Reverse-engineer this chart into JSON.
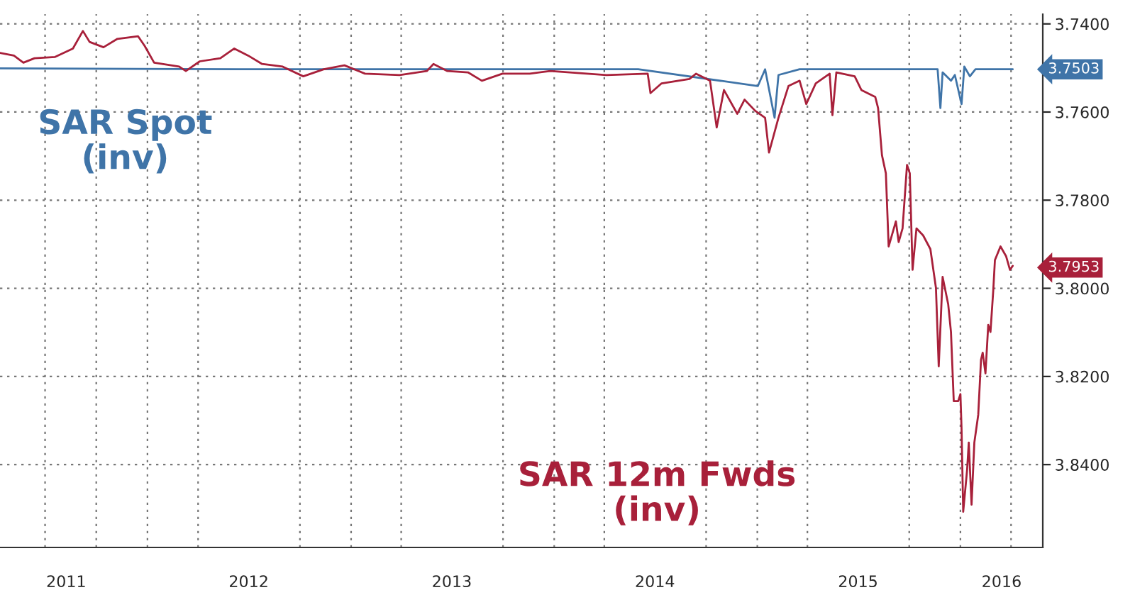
{
  "chart_data": {
    "type": "line",
    "series": [
      {
        "name": "SAR Spot\n(inv)",
        "color": "#3f74a8",
        "x": [
          "2011-04-11",
          "2012-06-12",
          "2014-06-01",
          "2015-01-02",
          "2015-01-15",
          "2015-02-01",
          "2015-02-08",
          "2015-03-18",
          "2015-11-21",
          "2015-11-26",
          "2015-11-30",
          "2015-12-15",
          "2015-12-22",
          "2016-01-03",
          "2016-01-08",
          "2016-01-18",
          "2016-01-28",
          "2016-04-04"
        ],
        "values": [
          3.7501,
          3.7503,
          3.7503,
          3.7541,
          3.7503,
          3.7613,
          3.7516,
          3.7503,
          3.7503,
          3.7591,
          3.751,
          3.7529,
          3.7516,
          3.7582,
          3.7497,
          3.7519,
          3.7503,
          3.7503
        ]
      },
      {
        "name": "SAR 12m Fwds\n(inv)",
        "color": "#a8203a",
        "x": [
          "2011-04-11",
          "2011-05-06",
          "2011-05-23",
          "2011-06-12",
          "2011-07-19",
          "2011-08-20",
          "2011-09-07",
          "2011-09-19",
          "2011-10-14",
          "2011-11-08",
          "2011-12-15",
          "2011-12-27",
          "2012-01-13",
          "2012-02-27",
          "2012-03-10",
          "2012-04-04",
          "2012-05-11",
          "2012-06-05",
          "2012-06-30",
          "2012-07-25",
          "2012-08-31",
          "2012-10-07",
          "2012-11-13",
          "2012-12-20",
          "2013-01-26",
          "2013-03-29",
          "2013-05-17",
          "2013-05-29",
          "2013-06-23",
          "2013-07-30",
          "2013-08-24",
          "2013-09-30",
          "2013-11-18",
          "2013-12-25",
          "2014-04-05",
          "2014-06-18",
          "2014-06-23",
          "2014-07-13",
          "2014-09-01",
          "2014-09-13",
          "2014-10-08",
          "2014-10-20",
          "2014-11-02",
          "2014-11-26",
          "2014-12-09",
          "2014-12-28",
          "2015-01-15",
          "2015-01-22",
          "2015-02-08",
          "2015-02-26",
          "2015-03-18",
          "2015-03-30",
          "2015-04-16",
          "2015-05-11",
          "2015-05-16",
          "2015-05-23",
          "2015-06-25",
          "2015-07-07",
          "2015-08-01",
          "2015-08-06",
          "2015-08-13",
          "2015-08-20",
          "2015-08-25",
          "2015-09-07",
          "2015-09-12",
          "2015-09-19",
          "2015-09-27",
          "2015-10-02",
          "2015-10-07",
          "2015-10-14",
          "2015-10-26",
          "2015-11-08",
          "2015-11-18",
          "2015-11-23",
          "2015-11-30",
          "2015-12-10",
          "2015-12-15",
          "2015-12-20",
          "2015-12-28",
          "2016-01-01",
          "2016-01-03",
          "2016-01-06",
          "2016-01-13",
          "2016-01-16",
          "2016-01-21",
          "2016-01-26",
          "2016-02-02",
          "2016-02-07",
          "2016-02-10",
          "2016-02-15",
          "2016-02-20",
          "2016-02-24",
          "2016-02-29",
          "2016-03-03",
          "2016-03-13",
          "2016-03-23",
          "2016-03-30",
          "2016-04-04"
        ],
        "values": [
          3.7466,
          3.7472,
          3.7488,
          3.7478,
          3.7475,
          3.7456,
          3.7416,
          3.7441,
          3.7453,
          3.7434,
          3.7428,
          3.745,
          3.7488,
          3.7497,
          3.7507,
          3.7485,
          3.7478,
          3.7456,
          3.7472,
          3.7491,
          3.7497,
          3.7519,
          3.7503,
          3.7494,
          3.7513,
          3.7516,
          3.7507,
          3.7491,
          3.7507,
          3.751,
          3.7529,
          3.7513,
          3.7513,
          3.7507,
          3.7516,
          3.7513,
          3.7557,
          3.7535,
          3.7525,
          3.7513,
          3.7529,
          3.7635,
          3.755,
          3.7604,
          3.7572,
          3.7597,
          3.7613,
          3.7692,
          3.7613,
          3.7541,
          3.7529,
          3.7582,
          3.7535,
          3.7513,
          3.7607,
          3.751,
          3.7519,
          3.755,
          3.7566,
          3.7591,
          3.7698,
          3.7739,
          3.7905,
          3.7848,
          3.7895,
          3.7864,
          3.772,
          3.7739,
          3.7958,
          3.7864,
          3.788,
          3.7911,
          3.7999,
          3.8177,
          3.7974,
          3.8036,
          3.8099,
          3.8256,
          3.8256,
          3.824,
          3.8318,
          3.8507,
          3.8412,
          3.835,
          3.8491,
          3.835,
          3.8287,
          3.8162,
          3.8146,
          3.8193,
          3.8083,
          3.8099,
          3.8005,
          3.7936,
          3.7905,
          3.7927,
          3.7958,
          3.7949
        ]
      }
    ],
    "xlim": [
      "2011-04-11",
      "2016-05-28"
    ],
    "xticks": [
      {
        "value": "2011-07-01",
        "label": null
      },
      {
        "value": "2011-08-08",
        "label": "2011"
      },
      {
        "value": "2011-10-01",
        "label": null
      },
      {
        "value": "2012-01-01",
        "label": null
      },
      {
        "value": "2012-04-01",
        "label": null
      },
      {
        "value": "2012-07-01",
        "label": "2012"
      },
      {
        "value": "2012-10-01",
        "label": null
      },
      {
        "value": "2013-01-01",
        "label": null
      },
      {
        "value": "2013-04-01",
        "label": null
      },
      {
        "value": "2013-07-01",
        "label": "2013"
      },
      {
        "value": "2013-10-01",
        "label": null
      },
      {
        "value": "2014-01-01",
        "label": null
      },
      {
        "value": "2014-04-01",
        "label": null
      },
      {
        "value": "2014-07-01",
        "label": "2014"
      },
      {
        "value": "2014-10-01",
        "label": null
      },
      {
        "value": "2015-01-01",
        "label": null
      },
      {
        "value": "2015-04-01",
        "label": null
      },
      {
        "value": "2015-07-01",
        "label": "2015"
      },
      {
        "value": "2015-10-01",
        "label": null
      },
      {
        "value": "2016-01-01",
        "label": null
      },
      {
        "value": "2016-03-15",
        "label": "2016"
      },
      {
        "value": "2016-04-01",
        "label": null
      }
    ],
    "ylim": [
      3.8588,
      3.7378
    ],
    "yticks": [
      {
        "value": 3.74,
        "label": "3.7400"
      },
      {
        "value": 3.76,
        "label": "3.7600"
      },
      {
        "value": 3.78,
        "label": "3.7800"
      },
      {
        "value": 3.8,
        "label": "3.8000"
      },
      {
        "value": 3.82,
        "label": "3.8200"
      },
      {
        "value": 3.84,
        "label": "3.8400"
      }
    ],
    "grid": true,
    "line_style": "solid",
    "marker": "none",
    "annotations": [
      {
        "text": "3.7503",
        "x": "2016-04-04",
        "y": 3.7503
      },
      {
        "text": "3.7953",
        "x": "2016-04-04",
        "y": 3.7953
      }
    ]
  }
}
